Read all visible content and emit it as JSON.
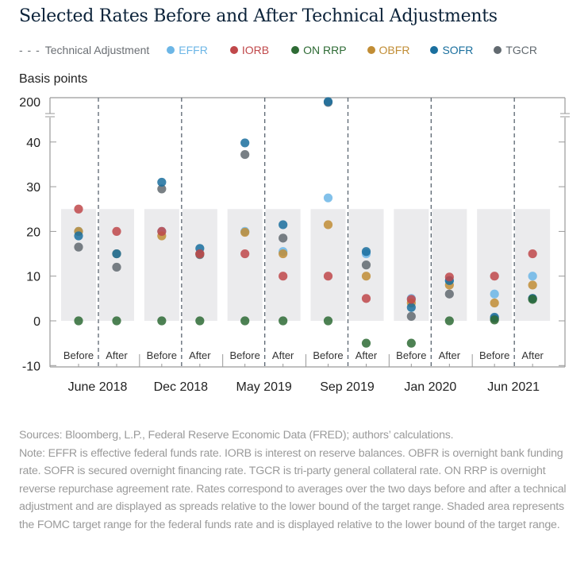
{
  "title": "Selected Rates Before and After Technical Adjustments",
  "legend": {
    "technical_adjustment": "Technical Adjustment",
    "technical_adjustment_color": "#6b6f74",
    "items": [
      {
        "key": "EFFR",
        "label": "EFFR",
        "color": "#6cb6e6"
      },
      {
        "key": "IORB",
        "label": "IORB",
        "color": "#c0484a"
      },
      {
        "key": "ONRRP",
        "label": "ON RRP",
        "color": "#2e6b35"
      },
      {
        "key": "OBFR",
        "label": "OBFR",
        "color": "#c18d35"
      },
      {
        "key": "SOFR",
        "label": "SOFR",
        "color": "#1a6f9e"
      },
      {
        "key": "TGCR",
        "label": "TGCR",
        "color": "#626a70"
      }
    ]
  },
  "chart_data": {
    "type": "scatter",
    "title": "Selected Rates Before and After Technical Adjustments",
    "ylabel": "Basis points",
    "xlabel": "",
    "ylim": [
      -10,
      45
    ],
    "y_break": {
      "below": 45,
      "top_tick": 200
    },
    "yticks": [
      {
        "value": -10,
        "label": "-10"
      },
      {
        "value": 0,
        "label": "0"
      },
      {
        "value": 10,
        "label": "10"
      },
      {
        "value": 20,
        "label": "20"
      },
      {
        "value": 30,
        "label": "30"
      },
      {
        "value": 40,
        "label": "40"
      },
      {
        "value": 200,
        "label": "200"
      }
    ],
    "shaded_range": {
      "low": 0,
      "high": 25,
      "label": "FOMC target range"
    },
    "groups": [
      {
        "label": "June 2018",
        "periods": [
          {
            "label": "Before",
            "values": {
              "EFFR": 20,
              "IORB": 25,
              "ONRRP": 0,
              "OBFR": 20,
              "SOFR": 19,
              "TGCR": 16.5
            }
          },
          {
            "label": "After",
            "values": {
              "EFFR": 15,
              "IORB": 20,
              "ONRRP": 0,
              "OBFR": 15,
              "SOFR": 15,
              "TGCR": 12
            }
          }
        ]
      },
      {
        "label": "Dec 2018",
        "periods": [
          {
            "label": "Before",
            "values": {
              "EFFR": 20,
              "IORB": 20,
              "ONRRP": 0,
              "OBFR": 19,
              "SOFR": 31,
              "TGCR": 29.5
            }
          },
          {
            "label": "After",
            "values": {
              "EFFR": 15,
              "IORB": 15,
              "ONRRP": 0,
              "OBFR": 15,
              "SOFR": 16.2,
              "TGCR": 14.8
            }
          }
        ]
      },
      {
        "label": "May 2019",
        "periods": [
          {
            "label": "Before",
            "values": {
              "EFFR": 20,
              "IORB": 15,
              "ONRRP": 0,
              "OBFR": 19.8,
              "SOFR": 39.8,
              "TGCR": 37.2
            }
          },
          {
            "label": "After",
            "values": {
              "EFFR": 15.5,
              "IORB": 10,
              "ONRRP": 0,
              "OBFR": 15,
              "SOFR": 21.5,
              "TGCR": 18.5
            }
          }
        ]
      },
      {
        "label": "Sep 2019",
        "periods": [
          {
            "label": "Before",
            "values": {
              "EFFR": 27.5,
              "IORB": 10,
              "ONRRP": 0,
              "OBFR": 21.5,
              "SOFR": 200,
              "TGCR": 199
            }
          },
          {
            "label": "After",
            "values": {
              "EFFR": 15,
              "IORB": 5,
              "ONRRP": -5,
              "OBFR": 10,
              "SOFR": 15.5,
              "TGCR": 12.5
            }
          }
        ]
      },
      {
        "label": "Jan 2020",
        "periods": [
          {
            "label": "Before",
            "values": {
              "EFFR": 5,
              "IORB": 4.8,
              "ONRRP": -5,
              "OBFR": 4,
              "SOFR": 3,
              "TGCR": 1
            }
          },
          {
            "label": "After",
            "values": {
              "EFFR": 9,
              "IORB": 9.8,
              "ONRRP": 0,
              "OBFR": 8,
              "SOFR": 9,
              "TGCR": 6
            }
          }
        ]
      },
      {
        "label": "Jun 2021",
        "periods": [
          {
            "label": "Before",
            "values": {
              "EFFR": 6,
              "IORB": 10,
              "ONRRP": 0.2,
              "OBFR": 4,
              "SOFR": 0.8,
              "TGCR": 0.5
            }
          },
          {
            "label": "After",
            "values": {
              "EFFR": 10,
              "IORB": 15,
              "ONRRP": 4.8,
              "OBFR": 8,
              "SOFR": 5,
              "TGCR": 5
            }
          }
        ]
      }
    ],
    "series_order": [
      "EFFR",
      "OBFR",
      "TGCR",
      "SOFR",
      "IORB",
      "ONRRP"
    ],
    "grid": false,
    "legend_position": "top"
  },
  "notes": {
    "sources": "Sources: Bloomberg, L.P., Federal Reserve Economic Data (FRED); authors’ calculations.",
    "note": "Note: EFFR is effective federal funds rate. IORB is interest on reserve balances. OBFR is overnight bank funding rate. SOFR is secured overnight financing rate. TGCR is tri-party general collateral rate. ON RRP is overnight reverse repurchase agreement rate. Rates correspond to averages over the two days before and after a technical adjustment and are displayed as spreads relative to the lower bound of the target range. Shaded area represents the FOMC target range for the federal funds rate and is displayed relative to the lower bound of the target range."
  }
}
